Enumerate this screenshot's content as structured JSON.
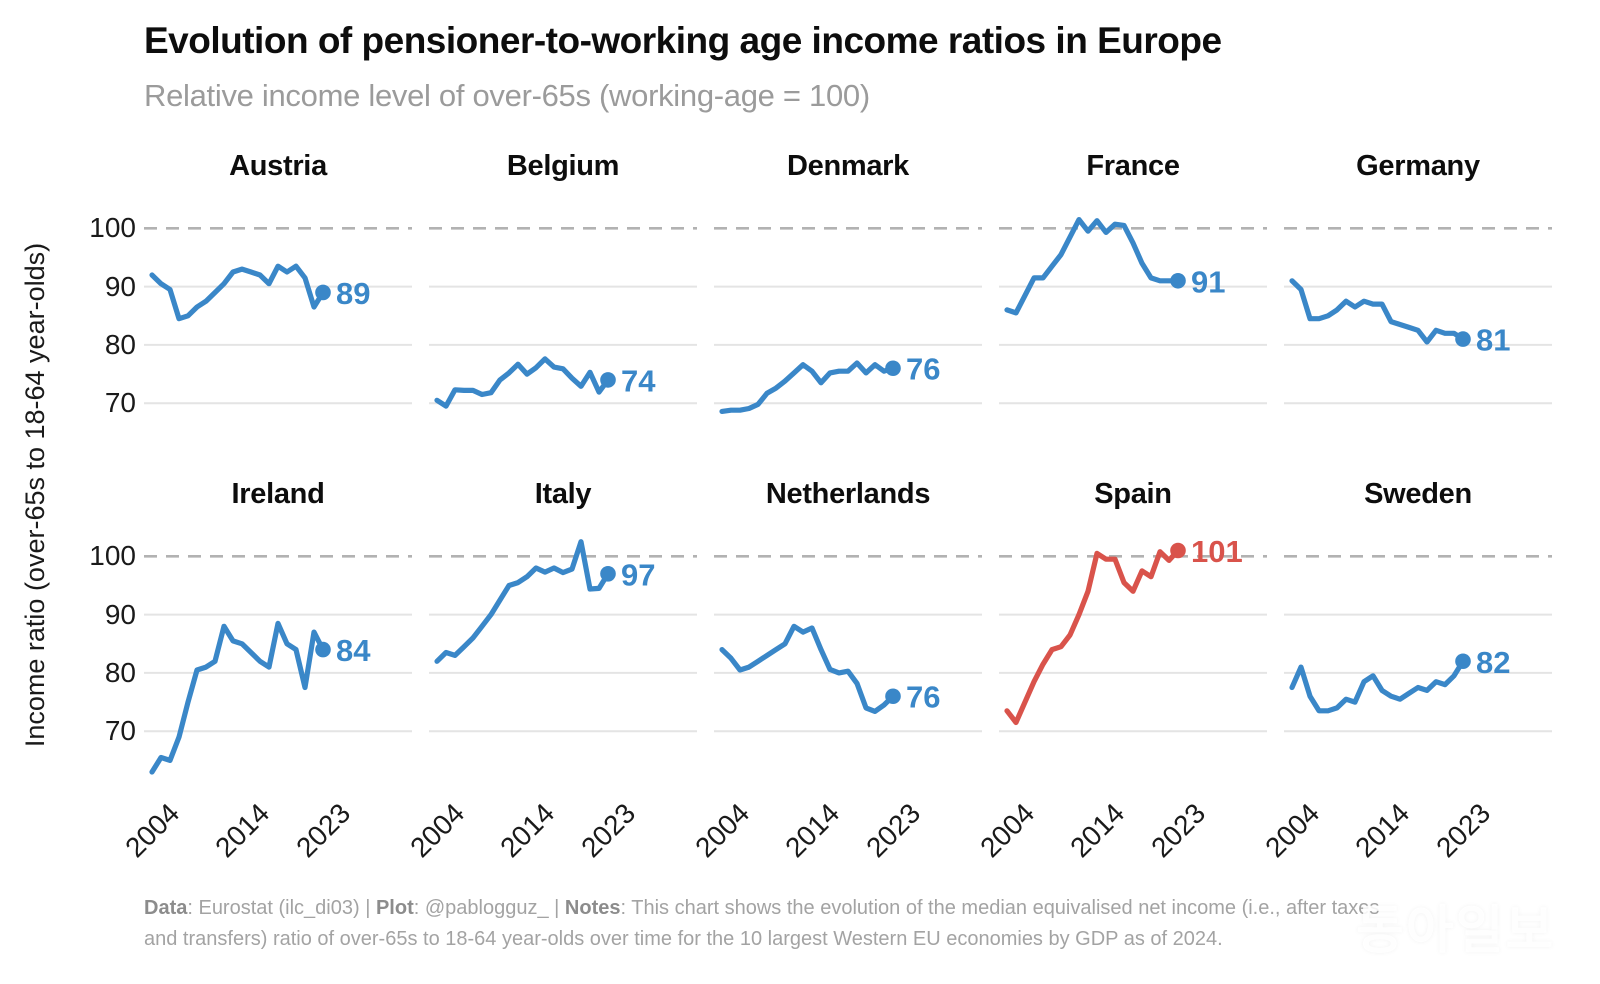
{
  "header": {
    "title": "Evolution of pensioner-to-working age income ratios in Europe",
    "subtitle": "Relative income level of over-65s (working-age = 100)"
  },
  "y_axis": {
    "label": "Income ratio (over-65s to 18-64 year-olds)",
    "ticks": [
      100,
      90,
      80,
      70
    ]
  },
  "x_axis": {
    "tick_labels": [
      "2004",
      "2014",
      "2023"
    ],
    "tick_years": [
      2004,
      2014,
      2023
    ]
  },
  "colors": {
    "line_blue": "#3a87c8",
    "line_red": "#d9534b",
    "grid": "#e4e4e4",
    "reference_line": "#b2b2b2",
    "title": "#0d0d0d",
    "subtitle_gray": "#9b9b9b",
    "footer_gray": "#a3a3a3"
  },
  "chart_data": {
    "type": "line",
    "layout": "small-multiples 2 rows x 5 columns",
    "x": [
      2004,
      2005,
      2006,
      2007,
      2008,
      2009,
      2010,
      2011,
      2012,
      2013,
      2014,
      2015,
      2016,
      2017,
      2018,
      2019,
      2020,
      2021,
      2022,
      2023
    ],
    "xlim": [
      2004,
      2023
    ],
    "ylim": [
      61,
      104
    ],
    "gridlines": [
      70,
      80,
      90
    ],
    "reference_line": 100,
    "grid_on": true,
    "series": [
      {
        "name": "Austria",
        "color": "#3a87c8",
        "end_label": "89",
        "values": [
          92,
          90.5,
          89.5,
          84.5,
          85,
          86.5,
          87.5,
          89,
          90.5,
          92.5,
          93,
          92.5,
          92,
          90.5,
          93.5,
          92.5,
          93.5,
          91.5,
          86.5,
          89
        ]
      },
      {
        "name": "Belgium",
        "color": "#3a87c8",
        "end_label": "74",
        "values": [
          70.5,
          69.5,
          72.3,
          72.2,
          72.2,
          71.5,
          71.8,
          74,
          75.2,
          76.7,
          75,
          76.1,
          77.6,
          76.2,
          75.9,
          74.3,
          72.9,
          75.3,
          71.9,
          74
        ]
      },
      {
        "name": "Denmark",
        "color": "#3a87c8",
        "end_label": "76",
        "values": [
          68.6,
          68.8,
          68.8,
          69.1,
          69.8,
          71.7,
          72.6,
          73.8,
          75.2,
          76.6,
          75.5,
          73.5,
          75.2,
          75.5,
          75.5,
          76.9,
          75.2,
          76.6,
          75.5,
          76
        ]
      },
      {
        "name": "France",
        "color": "#3a87c8",
        "end_label": "91",
        "values": [
          86,
          85.5,
          88.5,
          91.5,
          91.5,
          93.5,
          95.5,
          98.5,
          101.5,
          99.5,
          101.3,
          99.3,
          100.7,
          100.5,
          97.5,
          94,
          91.5,
          91,
          91,
          91
        ]
      },
      {
        "name": "Germany",
        "color": "#3a87c8",
        "end_label": "81",
        "values": [
          91,
          89.5,
          84.5,
          84.5,
          85,
          86,
          87.5,
          86.5,
          87.5,
          87,
          87,
          84,
          83.5,
          83,
          82.5,
          80.5,
          82.5,
          82,
          82,
          81
        ]
      },
      {
        "name": "Ireland",
        "color": "#3a87c8",
        "end_label": "84",
        "values": [
          63,
          65.5,
          65,
          69,
          75,
          80.5,
          81,
          82,
          88,
          85.5,
          85,
          83.5,
          82,
          81,
          88.5,
          85,
          84,
          77.5,
          87,
          84
        ]
      },
      {
        "name": "Italy",
        "color": "#3a87c8",
        "end_label": "97",
        "values": [
          82,
          83.5,
          83,
          84.5,
          86,
          88,
          90,
          92.5,
          95,
          95.5,
          96.5,
          98,
          97.3,
          98,
          97.2,
          97.8,
          102.5,
          94.4,
          94.5,
          97
        ]
      },
      {
        "name": "Netherlands",
        "color": "#3a87c8",
        "end_label": "76",
        "values": [
          84,
          82.5,
          80.5,
          81,
          82,
          83,
          84,
          85,
          88,
          87,
          87.7,
          84,
          80.6,
          80,
          80.3,
          78.2,
          74,
          73.4,
          74.5,
          76
        ]
      },
      {
        "name": "Spain",
        "color": "#d9534b",
        "end_label": "101",
        "values": [
          73.5,
          71.5,
          75,
          78.5,
          81.5,
          84,
          84.5,
          86.5,
          90,
          94,
          100.5,
          99.5,
          99.5,
          95.5,
          94,
          97.5,
          96.5,
          100.8,
          99.3,
          101
        ]
      },
      {
        "name": "Sweden",
        "color": "#3a87c8",
        "end_label": "82",
        "values": [
          77.5,
          81,
          76,
          73.5,
          73.5,
          74,
          75.5,
          75,
          78.5,
          79.5,
          77,
          76,
          75.5,
          76.5,
          77.5,
          77,
          78.5,
          78,
          79.5,
          82
        ]
      }
    ]
  },
  "footer": {
    "segments": [
      {
        "bold": true,
        "text": "Data"
      },
      {
        "bold": false,
        "text": ": Eurostat (ilc_di03) | "
      },
      {
        "bold": true,
        "text": "Plot"
      },
      {
        "bold": false,
        "text": ": @pablogguz_ | "
      },
      {
        "bold": true,
        "text": "Notes"
      },
      {
        "bold": false,
        "text": ": This chart shows the evolution of the median equivalised net income (i.e., after taxes and transfers) ratio of over-65s to 18-64 year-olds over time for the 10 largest Western EU economies by GDP as of 2024."
      }
    ]
  },
  "watermark": {
    "text": "동아일보"
  }
}
